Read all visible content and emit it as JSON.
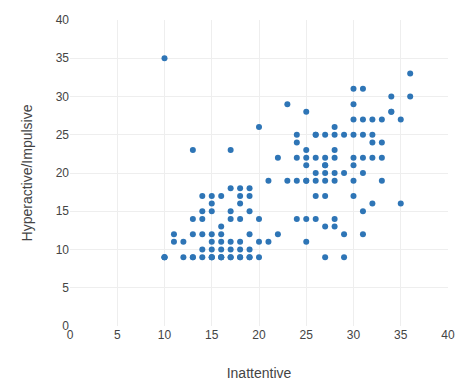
{
  "chart_data": {
    "type": "scatter",
    "x": [
      10,
      10,
      10,
      10,
      11,
      11,
      12,
      12,
      13,
      13,
      13,
      13,
      13,
      14,
      14,
      14,
      14,
      14,
      14,
      15,
      15,
      15,
      15,
      15,
      15,
      15,
      15,
      15,
      16,
      16,
      16,
      16,
      16,
      16,
      16,
      16,
      17,
      17,
      17,
      17,
      17,
      17,
      17,
      17,
      18,
      18,
      18,
      18,
      18,
      18,
      18,
      18,
      19,
      19,
      19,
      19,
      19,
      19,
      19,
      20,
      20,
      20,
      20,
      21,
      21,
      22,
      22,
      23,
      23,
      24,
      24,
      24,
      24,
      24,
      25,
      25,
      25,
      25,
      25,
      25,
      25,
      25,
      26,
      26,
      26,
      26,
      26,
      26,
      26,
      27,
      27,
      27,
      27,
      27,
      27,
      27,
      27,
      27,
      28,
      28,
      28,
      28,
      28,
      28,
      28,
      28,
      29,
      29,
      29,
      29,
      30,
      30,
      30,
      30,
      30,
      30,
      30,
      30,
      31,
      31,
      31,
      31,
      31,
      31,
      31,
      32,
      32,
      32,
      32,
      32,
      33,
      33,
      33,
      33,
      34,
      34,
      34,
      35,
      35,
      36,
      36
    ],
    "y": [
      9,
      9,
      9,
      35,
      11,
      12,
      9,
      11,
      9,
      9,
      12,
      14,
      23,
      9,
      10,
      12,
      14,
      15,
      17,
      9,
      9,
      9,
      10,
      11,
      12,
      15,
      16,
      17,
      9,
      9,
      9,
      10,
      11,
      12,
      13,
      17,
      9,
      9,
      10,
      11,
      14,
      15,
      18,
      23,
      9,
      9,
      10,
      11,
      14,
      16,
      17,
      18,
      9,
      9,
      10,
      12,
      15,
      17,
      18,
      9,
      11,
      14,
      26,
      11,
      19,
      12,
      22,
      19,
      29,
      14,
      19,
      22,
      24,
      25,
      11,
      14,
      19,
      19,
      21,
      22,
      23,
      28,
      14,
      17,
      19,
      20,
      22,
      25,
      25,
      9,
      13,
      17,
      19,
      20,
      21,
      21,
      22,
      25,
      13,
      14,
      19,
      20,
      22,
      23,
      25,
      26,
      9,
      12,
      20,
      25,
      17,
      19,
      21,
      22,
      25,
      27,
      29,
      31,
      12,
      15,
      20,
      22,
      25,
      27,
      31,
      16,
      22,
      24,
      25,
      27,
      19,
      22,
      24,
      27,
      28,
      28,
      30,
      16,
      27,
      30,
      33
    ],
    "xlabel": "Inattentive",
    "ylabel": "Hyperactive/Impulsive",
    "xlim": [
      0,
      40
    ],
    "ylim": [
      0,
      40
    ],
    "xticks": [
      0,
      5,
      10,
      15,
      20,
      25,
      30,
      35,
      40
    ],
    "yticks": [
      0,
      5,
      10,
      15,
      20,
      25,
      30,
      35,
      40
    ],
    "color": "#2e75b6",
    "grid": true
  }
}
